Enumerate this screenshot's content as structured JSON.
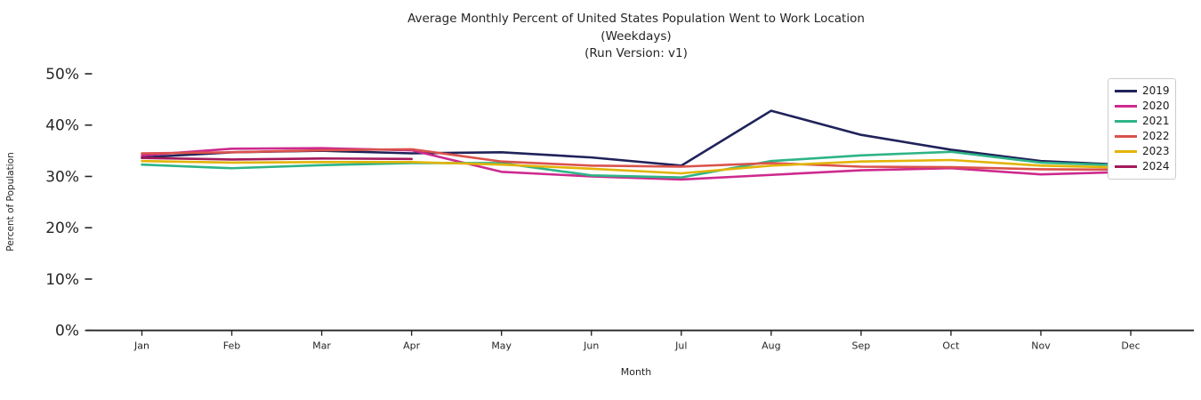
{
  "title": {
    "line1": "Average Monthly Percent of United States Population Went to Work Location",
    "line2": "(Weekdays)",
    "line3": "(Run Version: v1)"
  },
  "axes": {
    "x_label": "Month",
    "y_label": "Percent of Population",
    "x_tick_labels": [
      "Jan",
      "Feb",
      "Mar",
      "Apr",
      "May",
      "Jun",
      "Jul",
      "Aug",
      "Sep",
      "Oct",
      "Nov",
      "Dec"
    ],
    "y_tick_labels": [
      "0%",
      "10%",
      "20%",
      "30%",
      "40%",
      "50%"
    ],
    "y_tick_values": [
      0,
      10,
      20,
      30,
      40,
      50
    ],
    "axis_color": "#262626"
  },
  "legend": {
    "position": "upper right",
    "border_color": "#cccccc",
    "entries": [
      {
        "label": "2019",
        "color": "#20225a"
      },
      {
        "label": "2020",
        "color": "#cd2a8e"
      },
      {
        "label": "2021",
        "color": "#2eb487"
      },
      {
        "label": "2022",
        "color": "#da524c"
      },
      {
        "label": "2023",
        "color": "#e2b407"
      },
      {
        "label": "2024",
        "color": "#a3195b"
      }
    ]
  },
  "chart_data": {
    "type": "line",
    "title": "Average Monthly Percent of United States Population Went to Work Location (Weekdays) (Run Version: v1)",
    "xlabel": "Month",
    "ylabel": "Percent of Population",
    "categories": [
      "Jan",
      "Feb",
      "Mar",
      "Apr",
      "May",
      "Jun",
      "Jul",
      "Aug",
      "Sep",
      "Oct",
      "Nov",
      "Dec"
    ],
    "ylim": [
      0,
      52
    ],
    "grid": false,
    "legend_position": "upper right",
    "series": [
      {
        "name": "2019",
        "color": "#20225a",
        "values": [
          33.7,
          34.7,
          35.0,
          34.5,
          34.7,
          33.7,
          32.1,
          42.8,
          38.1,
          35.2,
          33.0,
          32.2
        ]
      },
      {
        "name": "2020",
        "color": "#cd2a8e",
        "values": [
          34.1,
          35.4,
          35.5,
          35.1,
          30.9,
          30.0,
          29.4,
          30.3,
          31.2,
          31.6,
          30.4,
          30.9
        ]
      },
      {
        "name": "2021",
        "color": "#2eb487",
        "values": [
          32.3,
          31.6,
          32.2,
          32.6,
          32.6,
          30.2,
          29.8,
          33.0,
          34.1,
          34.8,
          32.7,
          32.1
        ]
      },
      {
        "name": "2022",
        "color": "#da524c",
        "values": [
          34.5,
          34.7,
          35.1,
          35.3,
          32.9,
          32.1,
          31.9,
          32.6,
          31.9,
          31.8,
          31.4,
          31.3
        ]
      },
      {
        "name": "2023",
        "color": "#e2b407",
        "values": [
          33.0,
          32.7,
          32.8,
          32.8,
          32.3,
          31.5,
          30.6,
          32.1,
          32.9,
          33.2,
          32.1,
          31.7
        ]
      },
      {
        "name": "2024",
        "color": "#a3195b",
        "values": [
          33.6,
          33.3,
          33.5,
          33.4,
          null,
          null,
          null,
          null,
          null,
          null,
          null,
          null
        ]
      }
    ]
  }
}
